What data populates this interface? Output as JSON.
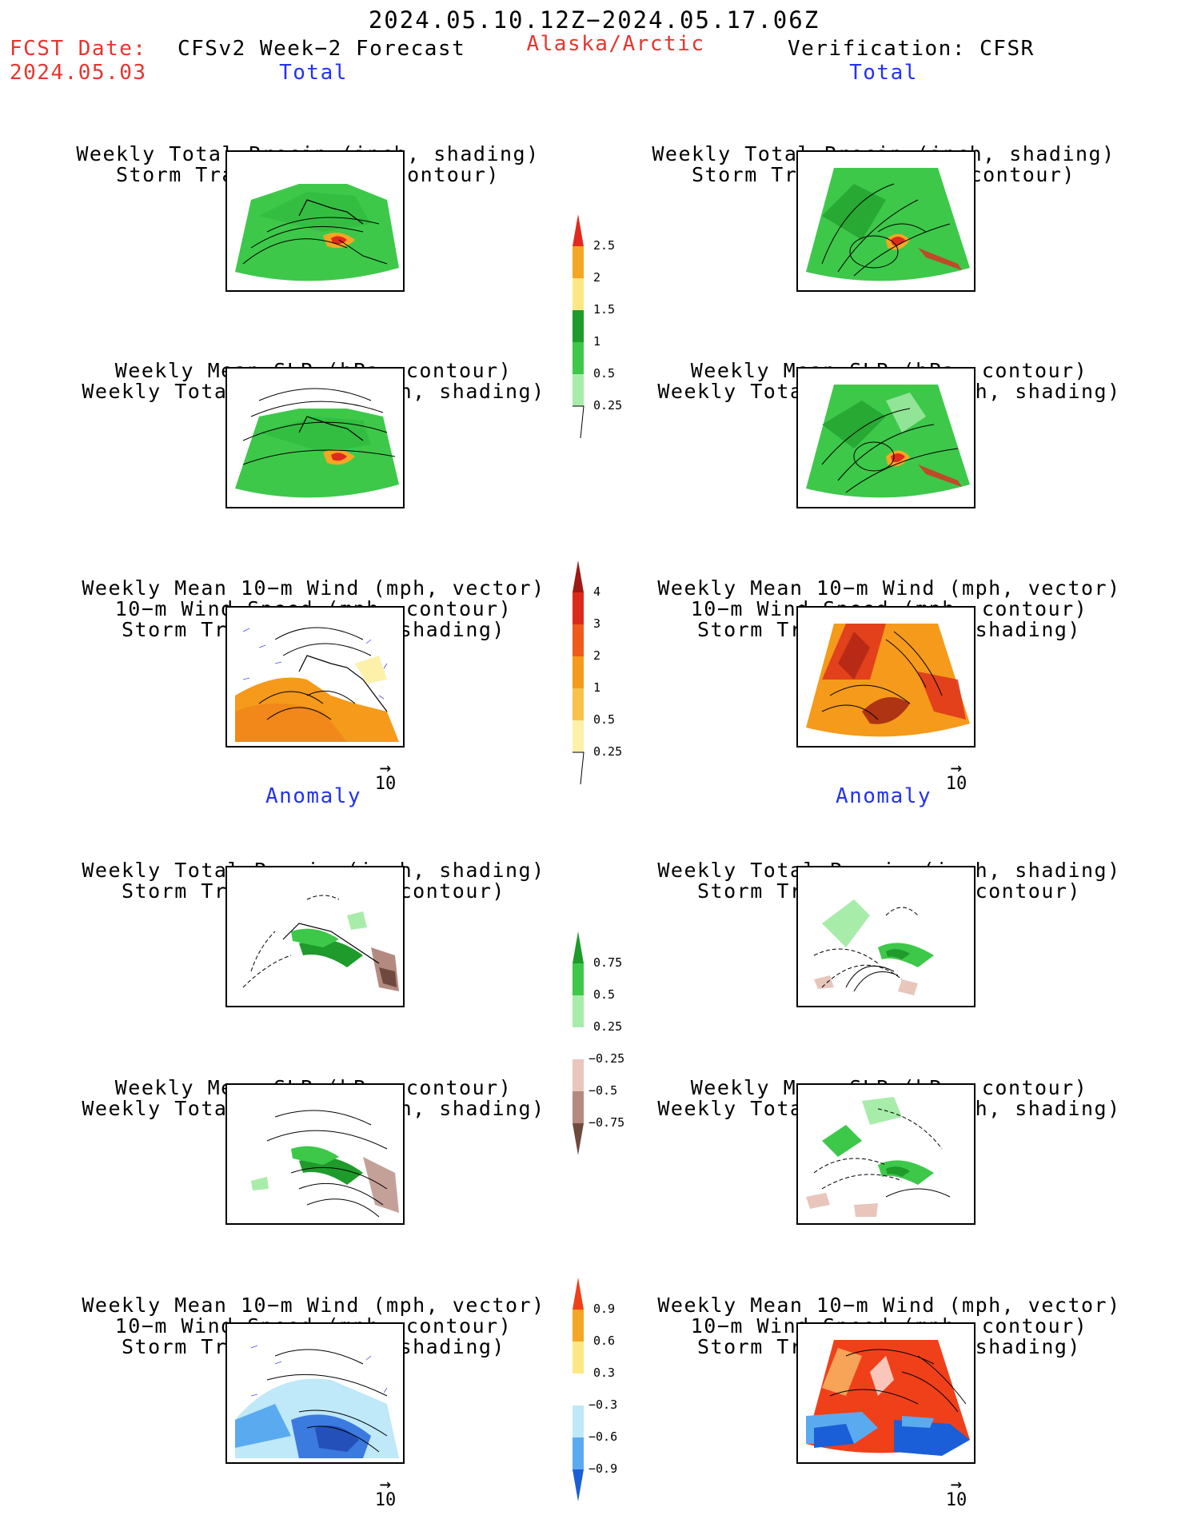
{
  "header": {
    "date_range": "2024.05.10.12Z−2024.05.17.06Z",
    "fcst_label": "FCST Date:",
    "fcst_date": "2024.05.03",
    "model": "CFSv2 Week−2 Forecast",
    "region": "Alaska/Arctic",
    "verification": "Verification: CFSR"
  },
  "sections": {
    "total": "Total",
    "anomaly": "Anomaly"
  },
  "panel_titles": {
    "precip_track": [
      "Weekly Total Precip (inch, shading)",
      "Storm Track Density (contour)"
    ],
    "slp_precip": [
      "Weekly Mean SLP (hPa, contour)",
      "Weekly Total Precip (inch, shading)"
    ],
    "wind_track": [
      "Weekly Mean 10−m Wind (mph, vector)",
      "10−m Wind Speed (mph, contour)",
      "Storm Track Density (shading)"
    ]
  },
  "vector_reference": "10",
  "colorbars": {
    "precip_total": {
      "labels": [
        "2.5",
        "2",
        "1.5",
        "1",
        "0.5",
        "0.25"
      ],
      "colors": [
        "#e02a1e",
        "#f5a623",
        "#fce883",
        "#1e9b2a",
        "#3dc84a",
        "#a8ecaa"
      ]
    },
    "track_total": {
      "labels": [
        "4",
        "3",
        "2",
        "1",
        "0.5",
        "0.25"
      ],
      "colors": [
        "#9c1a12",
        "#dd2a1b",
        "#f05a1a",
        "#f59a1a",
        "#f8c24a",
        "#fdf0a8"
      ]
    },
    "precip_anom": {
      "labels": [
        "0.75",
        "0.5",
        "0.25",
        "−0.25",
        "−0.5",
        "−0.75"
      ],
      "colors": [
        "#1e9b2a",
        "#3dc84a",
        "#a8ecaa",
        "#ffffff",
        "#e8c6bc",
        "#b48a80",
        "#6e4a3e"
      ]
    },
    "track_anom": {
      "labels": [
        "0.9",
        "0.6",
        "0.3",
        "−0.3",
        "−0.6",
        "−0.9"
      ],
      "colors": [
        "#f0401a",
        "#f5a623",
        "#fce883",
        "#ffffff",
        "#bfe8f8",
        "#5aaaf0",
        "#1a5ed8"
      ]
    }
  }
}
